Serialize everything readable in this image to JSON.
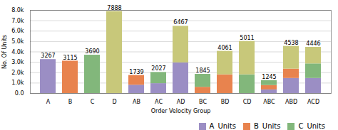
{
  "chart_data": {
    "type": "bar",
    "stacked": true,
    "categories": [
      "A",
      "B",
      "C",
      "D",
      "AB",
      "AC",
      "AD",
      "BC",
      "BD",
      "CD",
      "ABC",
      "ABD",
      "ACD"
    ],
    "series": [
      {
        "name": "A_Units",
        "color": "#9b8ec4",
        "values": [
          3267,
          0,
          0,
          0,
          800,
          950,
          2950,
          0,
          0,
          0,
          350,
          1450,
          1450
        ]
      },
      {
        "name": "B_Units",
        "color": "#e8834e",
        "values": [
          0,
          3115,
          0,
          0,
          939,
          0,
          0,
          600,
          1800,
          0,
          420,
          900,
          0
        ]
      },
      {
        "name": "C_Units",
        "color": "#82b77b",
        "values": [
          0,
          0,
          3690,
          0,
          0,
          1077,
          0,
          1245,
          0,
          1800,
          475,
          0,
          1400
        ]
      },
      {
        "color": "#c8c87a",
        "values": [
          0,
          0,
          0,
          7888,
          0,
          0,
          3517,
          0,
          2261,
          3211,
          0,
          2188,
          1596
        ]
      }
    ],
    "totals": [
      3267,
      3115,
      3690,
      7888,
      1739,
      2027,
      6467,
      1845,
      4061,
      5011,
      1245,
      4538,
      4446
    ],
    "xlabel": "Order Velocity Group",
    "ylabel": "No. Of Units",
    "ylim": [
      0,
      8000
    ],
    "yticks": [
      {
        "value": 0,
        "label": "0.0"
      },
      {
        "value": 1000,
        "label": "1.0k"
      },
      {
        "value": 2000,
        "label": "2.0k"
      },
      {
        "value": 3000,
        "label": "3.0k"
      },
      {
        "value": 4000,
        "label": "4.0k"
      },
      {
        "value": 5000,
        "label": "5.0k"
      },
      {
        "value": 6000,
        "label": "6.0k"
      },
      {
        "value": 7000,
        "label": "7.0k"
      },
      {
        "value": 8000,
        "label": "8.0k"
      }
    ],
    "grid": true,
    "legend": "lower right"
  }
}
